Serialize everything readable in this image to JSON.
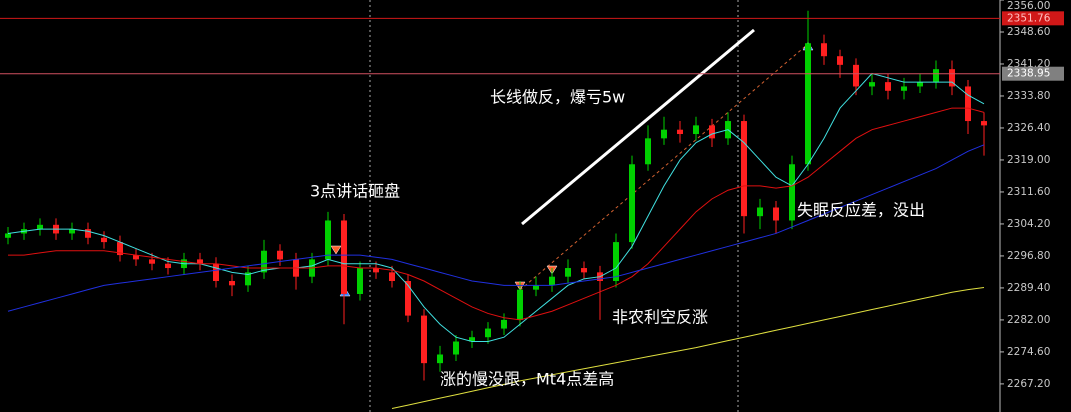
{
  "chart_data": {
    "type": "candlestick",
    "ylim": [
      2260.7,
      2356.0
    ],
    "yticks": [
      {
        "value": 2267.2,
        "label": "2267.20"
      },
      {
        "value": 2274.6,
        "label": "2274.60"
      },
      {
        "value": 2282,
        "label": "2282.00"
      },
      {
        "value": 2289.4,
        "label": "2289.40"
      },
      {
        "value": 2296.8,
        "label": "2296.80"
      },
      {
        "value": 2304.2,
        "label": "2304.20"
      },
      {
        "value": 2311.6,
        "label": "2311.60"
      },
      {
        "value": 2319,
        "label": "2319.00"
      },
      {
        "value": 2326.4,
        "label": "2326.40"
      },
      {
        "value": 2333.8,
        "label": "2333.80"
      },
      {
        "value": 2341.2,
        "label": "2341.20"
      },
      {
        "value": 2348.6,
        "label": "2348.60"
      },
      {
        "value": 2356,
        "label": "2356.00"
      }
    ],
    "up_color": "#00d000",
    "down_color": "#ff2020",
    "open": [
      2301,
      2302,
      2303,
      2304,
      2302,
      2303,
      2301,
      2300,
      2297,
      2296,
      2295,
      2294,
      2296,
      2295,
      2291,
      2290,
      2293,
      2298,
      2296,
      2292,
      2296,
      2305,
      2288,
      2294,
      2293,
      2291,
      2283,
      2272,
      2274,
      2277,
      2278,
      2280,
      2282,
      2289,
      2290,
      2292,
      2294,
      2293,
      2291,
      2300,
      2318,
      2324,
      2326,
      2325,
      2327,
      2324,
      2328,
      2306,
      2308,
      2305,
      2318,
      2346,
      2343,
      2341,
      2336,
      2337,
      2335,
      2336,
      2337,
      2340,
      2336,
      2328
    ],
    "high": [
      2303.5,
      2304.5,
      2305.5,
      2305.5,
      2304.5,
      2304.5,
      2302.5,
      2301.5,
      2298.5,
      2297.5,
      2296.5,
      2297.5,
      2297.5,
      2296.5,
      2292.5,
      2294.5,
      2300.5,
      2299.5,
      2297.5,
      2297.5,
      2307,
      2306.5,
      2295.5,
      2295.5,
      2294.5,
      2292.5,
      2284.5,
      2276,
      2278.5,
      2279.5,
      2281.5,
      2283.5,
      2291,
      2292,
      2294,
      2296,
      2295.5,
      2294.5,
      2302,
      2320,
      2327,
      2329,
      2328,
      2329,
      2328.5,
      2330,
      2329.5,
      2310,
      2309.5,
      2320,
      2353.5,
      2348,
      2344.5,
      2342.5,
      2339,
      2339,
      2338,
      2339,
      2342,
      2342,
      2337.5,
      2330
    ],
    "low": [
      2299.5,
      2300.5,
      2301.5,
      2300.5,
      2300.5,
      2299.5,
      2298.5,
      2295.5,
      2294.5,
      2293.5,
      2292.5,
      2292.5,
      2293.5,
      2289.5,
      2287.5,
      2288.5,
      2291.5,
      2294.5,
      2289,
      2290.5,
      2294.5,
      2281,
      2286.5,
      2291.5,
      2289.5,
      2281.5,
      2268,
      2270,
      2272.5,
      2275.5,
      2276.5,
      2278.5,
      2280.5,
      2287.5,
      2288.5,
      2290.5,
      2291.5,
      2282,
      2289.5,
      2298.5,
      2316.5,
      2322.5,
      2323,
      2323.5,
      2322,
      2322.5,
      2302,
      2303,
      2302,
      2303,
      2316.5,
      2341,
      2338,
      2334,
      2334,
      2333,
      2333,
      2334.5,
      2335.5,
      2334,
      2325,
      2320
    ],
    "close": [
      2302,
      2303,
      2304,
      2302,
      2303,
      2301,
      2300,
      2297,
      2296,
      2295,
      2294,
      2296,
      2295,
      2291,
      2290,
      2293,
      2298,
      2296,
      2292,
      2296,
      2305,
      2288,
      2294,
      2293,
      2291,
      2283,
      2272,
      2274,
      2277,
      2278,
      2280,
      2282,
      2289,
      2290,
      2292,
      2294,
      2293,
      2291,
      2300,
      2318,
      2324,
      2326,
      2325,
      2327,
      2324,
      2328,
      2306,
      2308,
      2305,
      2318,
      2346,
      2343,
      2341,
      2336,
      2337,
      2335,
      2336,
      2337,
      2340,
      2336,
      2328,
      2327
    ],
    "series": [
      {
        "color": "#40e0e0",
        "values": [
          2302,
          2302.5,
          2303,
          2303,
          2303,
          2302.5,
          2301.5,
          2300,
          2298.5,
          2297,
          2295.5,
          2295,
          2295,
          2294,
          2293,
          2292.5,
          2293.5,
          2294,
          2294,
          2294.5,
          2296,
          2295,
          2295,
          2295,
          2294,
          2290,
          2285,
          2281,
          2278,
          2277,
          2277,
          2278,
          2281,
          2284,
          2287,
          2290,
          2291.5,
          2292,
          2294,
          2299,
          2306,
          2313,
          2319,
          2323,
          2325,
          2326,
          2323,
          2319,
          2315,
          2313,
          2318,
          2324,
          2331,
          2335,
          2339,
          2338,
          2337,
          2337,
          2337,
          2337,
          2334,
          2332
        ]
      },
      {
        "color": "#e01010",
        "values": [
          2297,
          2297,
          2297.5,
          2298,
          2298,
          2298,
          2298,
          2297.5,
          2297,
          2296.5,
          2296,
          2295.5,
          2295,
          2295,
          2294.5,
          2294,
          2294,
          2294,
          2294,
          2294,
          2294.5,
          2294.5,
          2294,
          2294,
          2293.5,
          2292.5,
          2291,
          2289,
          2287,
          2285,
          2283.5,
          2282.5,
          2282,
          2283,
          2284,
          2285.5,
          2287,
          2288.5,
          2290,
          2292,
          2295,
          2299,
          2303,
          2307,
          2310,
          2312,
          2313,
          2313,
          2312.5,
          2313,
          2315,
          2318,
          2321,
          2324,
          2326,
          2327,
          2328,
          2329,
          2330,
          2331,
          2331,
          2330
        ]
      },
      {
        "color": "#2030e0",
        "values": [
          2284,
          2285,
          2286,
          2287,
          2288,
          2289,
          2290,
          2290.5,
          2291,
          2291.5,
          2292,
          2292.5,
          2293,
          2293.5,
          2294,
          2294.5,
          2295,
          2295.5,
          2296,
          2296.5,
          2297,
          2297,
          2297,
          2296.5,
          2296,
          2295,
          2294,
          2293,
          2292,
          2291,
          2290.5,
          2290,
          2290,
          2290,
          2290,
          2290.5,
          2291,
          2291.5,
          2292,
          2293,
          2294,
          2295,
          2296,
          2297,
          2298,
          2299,
          2300,
          2301,
          2302,
          2303.5,
          2305,
          2306.5,
          2308,
          2309.5,
          2311,
          2312.5,
          2314,
          2315.5,
          2317,
          2319,
          2321,
          2322.5
        ]
      },
      {
        "color": "#e0e040",
        "values": [
          null,
          null,
          null,
          null,
          null,
          null,
          null,
          null,
          null,
          null,
          null,
          null,
          null,
          null,
          null,
          null,
          null,
          null,
          null,
          null,
          null,
          null,
          null,
          null,
          2261.5,
          2262.3,
          2263.1,
          2263.9,
          2264.7,
          2265.5,
          2266.3,
          2267.1,
          2267.9,
          2268.6,
          2269.3,
          2270,
          2270.7,
          2271.4,
          2272.1,
          2272.8,
          2273.5,
          2274.2,
          2274.9,
          2275.6,
          2276.4,
          2277.2,
          2278,
          2278.8,
          2279.6,
          2280.4,
          2281.2,
          2282,
          2282.8,
          2283.6,
          2284.4,
          2285.2,
          2286,
          2286.8,
          2287.6,
          2288.4,
          2289,
          2289.5
        ]
      }
    ],
    "price_lines": [
      {
        "value": 2351.76,
        "color": "#d01818"
      },
      {
        "value": 2338.95,
        "color": "#d05060"
      }
    ],
    "annotations": [
      "3点讲话砸盘",
      "长线做反，爆亏5w",
      "失眠反应差，没出",
      "非农利空反涨",
      "涨的慢没跟，Mt4点差高"
    ]
  }
}
